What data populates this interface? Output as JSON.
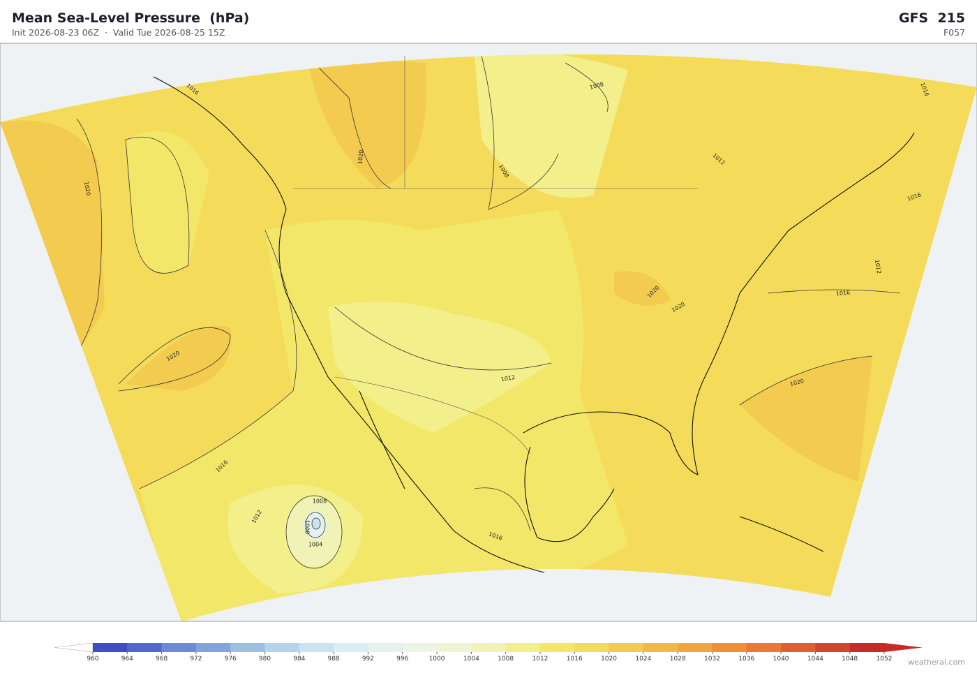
{
  "header": {
    "title": "Mean Sea-Level Pressure  (hPa)",
    "subtitle": "Init 2026-08-23 06Z  ·  Valid Tue 2026-08-25 15Z",
    "model": "GFS  215",
    "forecast_hour": "F057"
  },
  "map": {
    "contour_labels": [
      "1020",
      "1020",
      "1020",
      "1016",
      "1012",
      "1008",
      "1004",
      "1000",
      "1008",
      "1008",
      "1012",
      "1016",
      "1020",
      "1020",
      "1016",
      "1020",
      "1012",
      "1016",
      "1012",
      "1016",
      "1016"
    ]
  },
  "colorbar": {
    "ticks": [
      960,
      964,
      968,
      972,
      976,
      980,
      984,
      988,
      992,
      996,
      1000,
      1004,
      1008,
      1012,
      1016,
      1020,
      1024,
      1028,
      1032,
      1036,
      1040,
      1044,
      1048,
      1052
    ],
    "colors": [
      "#3f4fc0",
      "#5468cc",
      "#6a8bd6",
      "#7ea6dc",
      "#9bc0e4",
      "#b6d3ec",
      "#cce3ef",
      "#dbeef2",
      "#e4f2ef",
      "#ecf5e6",
      "#eef5d4",
      "#f1f3b6",
      "#f3ef8a",
      "#f3e76a",
      "#f4dc5a",
      "#f3cb4f",
      "#f2b845",
      "#f0a540",
      "#ee903a",
      "#e87936",
      "#de6030",
      "#d4462b",
      "#c72b27"
    ],
    "under_color": "#ffffff",
    "over_color": "#c72b27"
  },
  "footer": {
    "credit": "weatherai.com"
  }
}
